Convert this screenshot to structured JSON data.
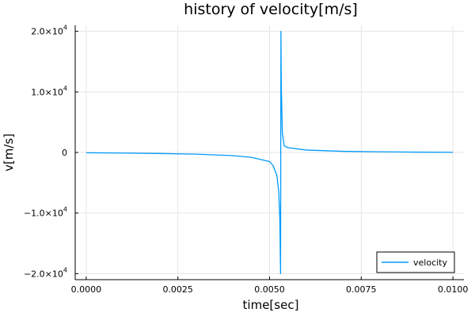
{
  "chart_data": {
    "type": "line",
    "title": "history of velocity[m/s]",
    "xlabel": "time[sec]",
    "ylabel": "v[m/s]",
    "xlim": [
      -0.0003,
      0.0103
    ],
    "ylim": [
      -21000,
      21000
    ],
    "grid": true,
    "legend_position": "bottom-right",
    "x_ticks": [
      {
        "value": 0.0,
        "label": "0.0000"
      },
      {
        "value": 0.0025,
        "label": "0.0025"
      },
      {
        "value": 0.005,
        "label": "0.0050"
      },
      {
        "value": 0.0075,
        "label": "0.0075"
      },
      {
        "value": 0.01,
        "label": "0.0100"
      }
    ],
    "y_ticks": [
      {
        "value": -20000,
        "mantissa": "−2.0×10",
        "exponent": "4"
      },
      {
        "value": -10000,
        "mantissa": "−1.0×10",
        "exponent": "4"
      },
      {
        "value": 0,
        "mantissa": "0",
        "exponent": ""
      },
      {
        "value": 10000,
        "mantissa": "1.0×10",
        "exponent": "4"
      },
      {
        "value": 20000,
        "mantissa": "2.0×10",
        "exponent": "4"
      }
    ],
    "series": [
      {
        "name": "velocity",
        "color": "#009AFA",
        "x": [
          0.0,
          0.001,
          0.002,
          0.003,
          0.004,
          0.0045,
          0.005,
          0.0051,
          0.0052,
          0.00525,
          0.00528,
          0.0053,
          0.00531,
          0.00532,
          0.00535,
          0.0054,
          0.0055,
          0.006,
          0.007,
          0.008,
          0.009,
          0.01
        ],
        "y": [
          -50,
          -100,
          -170,
          -280,
          -520,
          -800,
          -1500,
          -2200,
          -3800,
          -6500,
          -11000,
          -20000,
          20000,
          11000,
          3200,
          1100,
          800,
          400,
          190,
          110,
          60,
          30
        ]
      }
    ]
  }
}
